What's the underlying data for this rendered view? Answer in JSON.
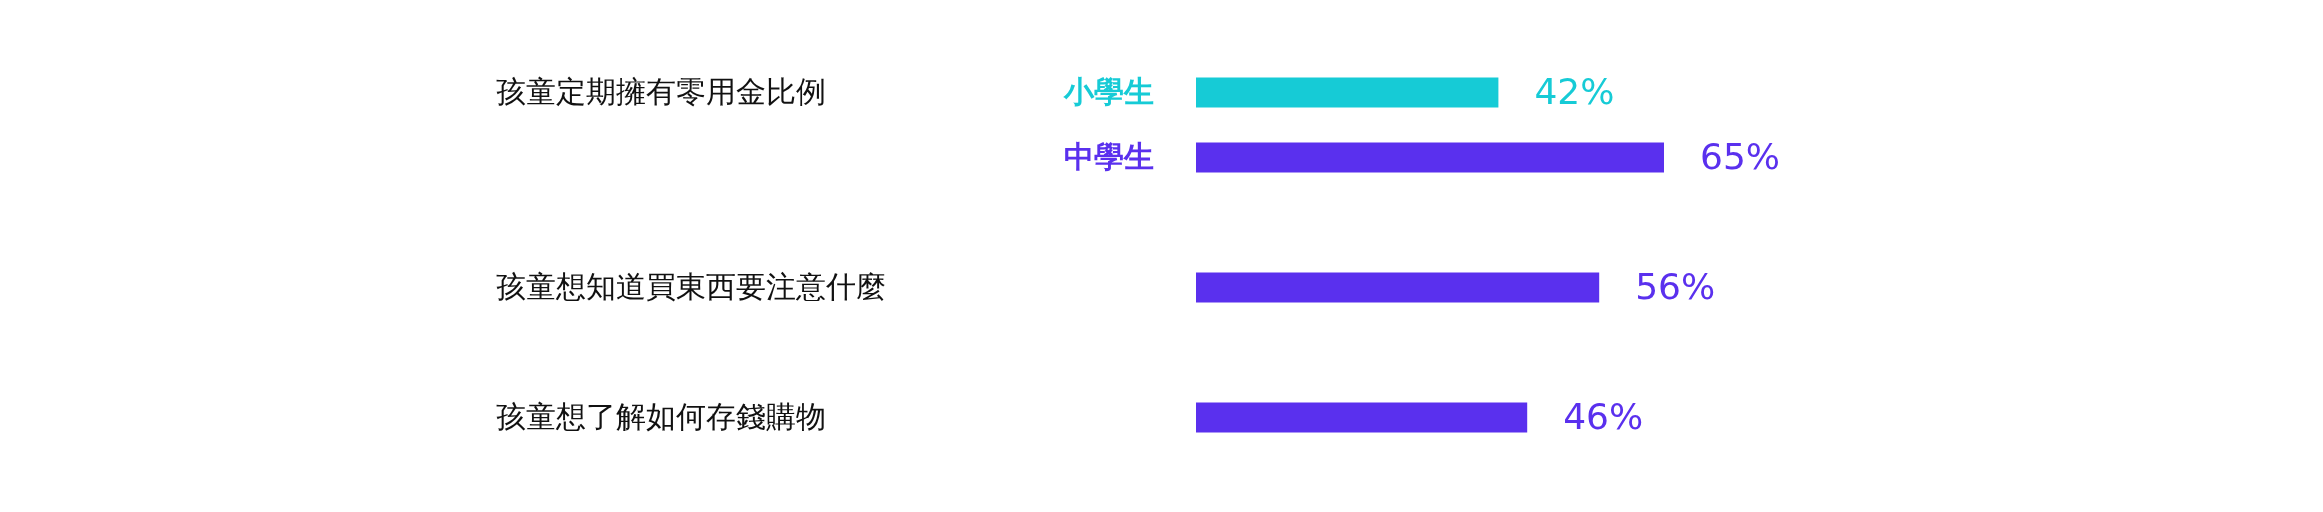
{
  "chart_data": {
    "type": "bar",
    "orientation": "horizontal",
    "categories": [
      "孩童定期擁有零用金比例",
      "孩童想知道買東西要注意什麼",
      "孩童想了解如何存錢購物"
    ],
    "series": [
      {
        "name": "小學生",
        "color": "#16cbd6",
        "values": [
          42,
          null,
          null
        ],
        "value_labels": [
          "42%",
          null,
          null
        ]
      },
      {
        "name": "中學生",
        "color": "#5a30ee",
        "values": [
          65,
          56,
          46
        ],
        "value_labels": [
          "65%",
          "56%",
          "46%"
        ]
      }
    ]
  }
}
